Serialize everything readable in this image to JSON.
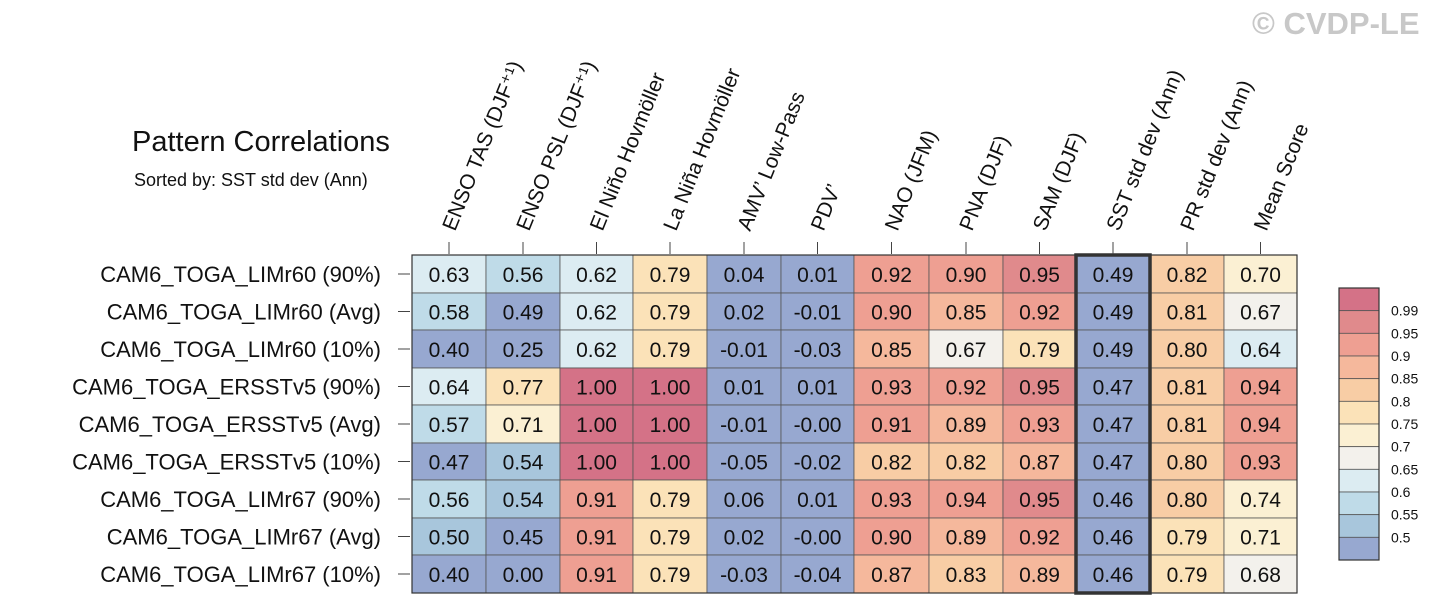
{
  "title": "Pattern Correlations",
  "subtitle": "Sorted by: SST std dev (Ann)",
  "watermark": "© CVDP-LE",
  "chart_data": {
    "type": "heatmap",
    "columns": [
      "ENSO TAS (DJF⁺¹)",
      "ENSO PSL (DJF⁺¹)",
      "El Niño Hovmöller",
      "La Niña Hovmöller",
      "AMV’ Low-Pass",
      "PDV’",
      "NAO (JFM)",
      "PNA (DJF)",
      "SAM (DJF)",
      "SST std dev (Ann)",
      "PR std dev (Ann)",
      "Mean Score"
    ],
    "rows": [
      "CAM6_TOGA_LIMr60 (90%)",
      "CAM6_TOGA_LIMr60 (Avg)",
      "CAM6_TOGA_LIMr60 (10%)",
      "CAM6_TOGA_ERSSTv5 (90%)",
      "CAM6_TOGA_ERSSTv5 (Avg)",
      "CAM6_TOGA_ERSSTv5 (10%)",
      "CAM6_TOGA_LIMr67 (90%)",
      "CAM6_TOGA_LIMr67 (Avg)",
      "CAM6_TOGA_LIMr67 (10%)"
    ],
    "values": [
      [
        "0.63",
        "0.56",
        "0.62",
        "0.79",
        "0.04",
        "0.01",
        "0.92",
        "0.90",
        "0.95",
        "0.49",
        "0.82",
        "0.70"
      ],
      [
        "0.58",
        "0.49",
        "0.62",
        "0.79",
        "0.02",
        "-0.01",
        "0.90",
        "0.85",
        "0.92",
        "0.49",
        "0.81",
        "0.67"
      ],
      [
        "0.40",
        "0.25",
        "0.62",
        "0.79",
        "-0.01",
        "-0.03",
        "0.85",
        "0.67",
        "0.79",
        "0.49",
        "0.80",
        "0.64"
      ],
      [
        "0.64",
        "0.77",
        "1.00",
        "1.00",
        "0.01",
        "0.01",
        "0.93",
        "0.92",
        "0.95",
        "0.47",
        "0.81",
        "0.94"
      ],
      [
        "0.57",
        "0.71",
        "1.00",
        "1.00",
        "-0.01",
        "-0.00",
        "0.91",
        "0.89",
        "0.93",
        "0.47",
        "0.81",
        "0.94"
      ],
      [
        "0.47",
        "0.54",
        "1.00",
        "1.00",
        "-0.05",
        "-0.02",
        "0.82",
        "0.82",
        "0.87",
        "0.47",
        "0.80",
        "0.93"
      ],
      [
        "0.56",
        "0.54",
        "0.91",
        "0.79",
        "0.06",
        "0.01",
        "0.93",
        "0.94",
        "0.95",
        "0.46",
        "0.80",
        "0.74"
      ],
      [
        "0.50",
        "0.45",
        "0.91",
        "0.79",
        "0.02",
        "-0.00",
        "0.90",
        "0.89",
        "0.92",
        "0.46",
        "0.79",
        "0.71"
      ],
      [
        "0.40",
        "0.00",
        "0.91",
        "0.79",
        "-0.03",
        "-0.04",
        "0.87",
        "0.83",
        "0.89",
        "0.46",
        "0.79",
        "0.68"
      ]
    ],
    "highlighted_column": "SST std dev (Ann)",
    "colorbar": {
      "labels": [
        "0.99",
        "0.95",
        "0.9",
        "0.85",
        "0.8",
        "0.75",
        "0.7",
        "0.65",
        "0.6",
        "0.55",
        "0.5"
      ],
      "thresholds": [
        0.99,
        0.95,
        0.9,
        0.85,
        0.8,
        0.75,
        0.7,
        0.65,
        0.6,
        0.55,
        0.5
      ],
      "colors": [
        "#d47287",
        "#e08a8c",
        "#ee9f92",
        "#f5b89c",
        "#f8cda5",
        "#fbe2b8",
        "#fbf0d3",
        "#f3f1ec",
        "#dcecf2",
        "#bfdbe8",
        "#a8c6dc",
        "#97a8d0"
      ]
    }
  }
}
